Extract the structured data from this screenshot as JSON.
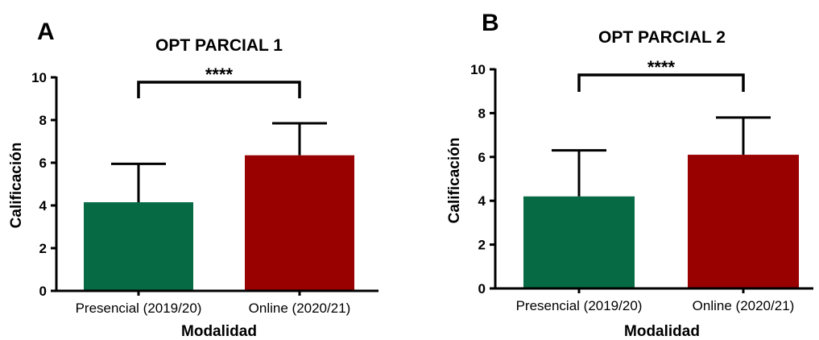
{
  "chart_data": [
    {
      "type": "bar",
      "panel": "A",
      "title": "OPT PARCIAL 1",
      "xlabel": "Modalidad",
      "ylabel": "Calificación",
      "ylim": [
        0,
        10
      ],
      "yticks": [
        "0",
        "2",
        "4",
        "6",
        "8",
        "10"
      ],
      "categories": [
        "Presencial (2019/20)",
        "Online (2020/21)"
      ],
      "values": [
        4.15,
        6.35
      ],
      "error_upper": [
        5.95,
        7.85
      ],
      "colors": [
        "#066b45",
        "#990000"
      ],
      "significance": "****"
    },
    {
      "type": "bar",
      "panel": "B",
      "title": "OPT PARCIAL 2",
      "xlabel": "Modalidad",
      "ylabel": "Calificación",
      "ylim": [
        0,
        10
      ],
      "yticks": [
        "0",
        "2",
        "4",
        "6",
        "8",
        "10"
      ],
      "categories": [
        "Presencial (2019/20)",
        "Online (2020/21)"
      ],
      "values": [
        4.2,
        6.1
      ],
      "error_upper": [
        6.3,
        7.8
      ],
      "colors": [
        "#066b45",
        "#990000"
      ],
      "significance": "****"
    }
  ]
}
